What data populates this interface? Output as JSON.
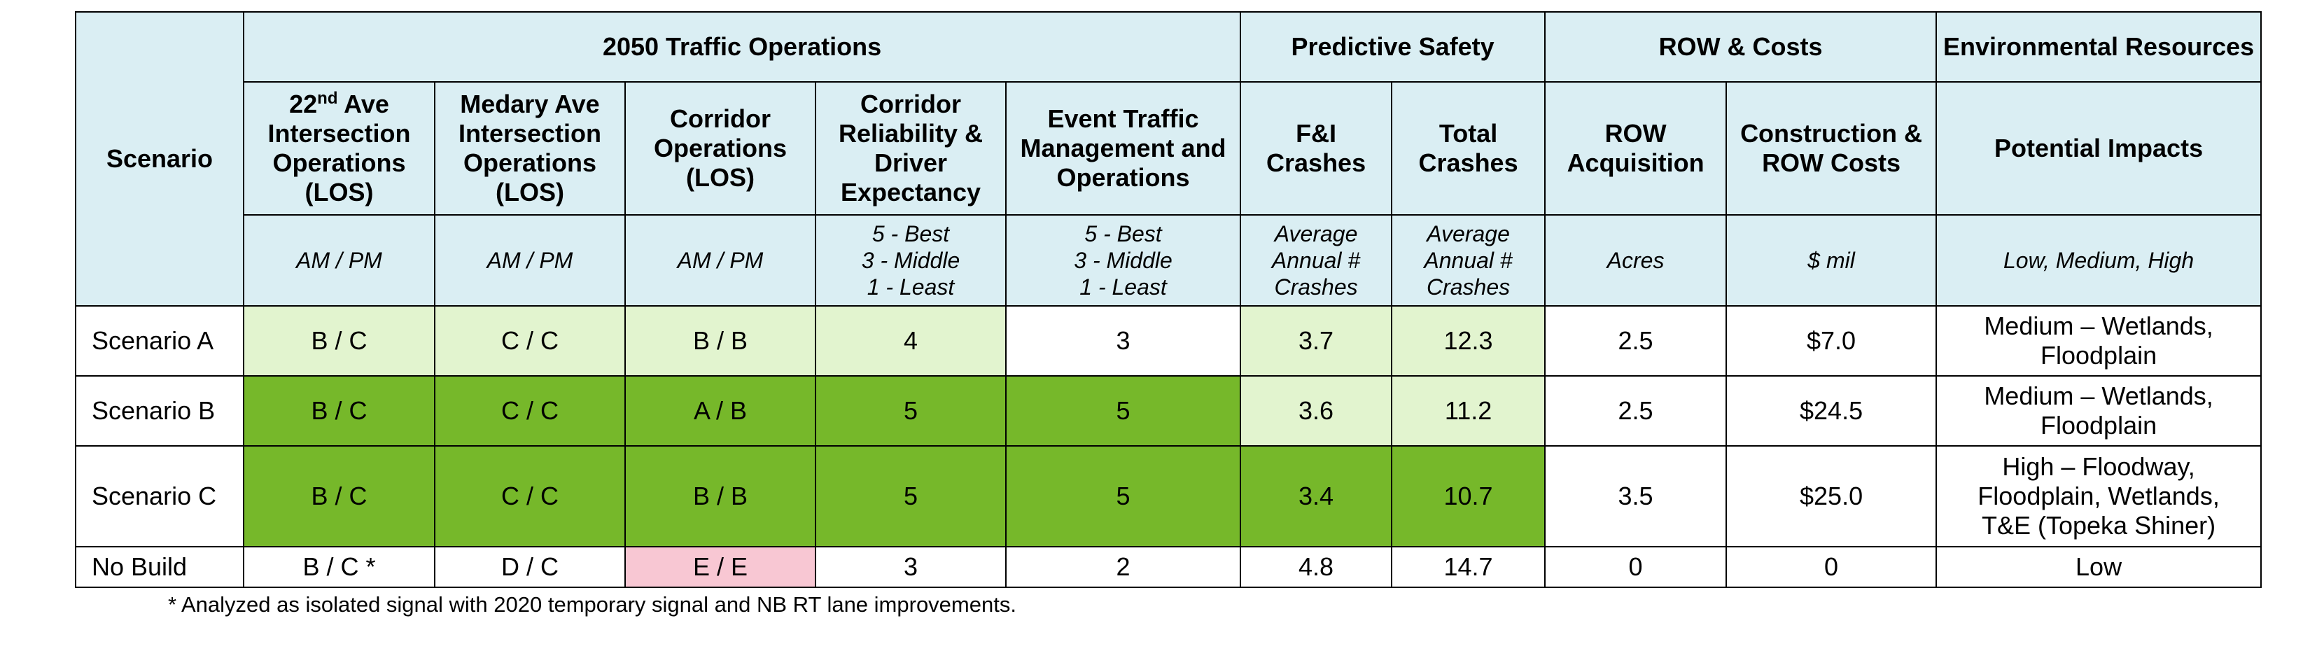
{
  "groups": {
    "scenario": "Scenario",
    "traffic": "2050 Traffic Operations",
    "safety": "Predictive Safety",
    "row": "ROW & Costs",
    "env": "Environmental Resources"
  },
  "columns": {
    "c1_pre": "22",
    "c1_sup": "nd",
    "c1_post": " Ave Intersection Operations (LOS)",
    "c2": "Medary Ave Intersection Operations (LOS)",
    "c3": "Corridor Operations (LOS)",
    "c4": "Corridor Reliability & Driver Expectancy",
    "c5": "Event Traffic Management and Operations",
    "c6": "F&I Crashes",
    "c7": "Total Crashes",
    "c8": "ROW Acquisition",
    "c9": "Construction & ROW Costs",
    "c10": "Potential Impacts"
  },
  "units": {
    "c1": "AM / PM",
    "c2": "AM / PM",
    "c3": "AM / PM",
    "c4": [
      "5 - Best",
      "3 - Middle",
      "1 - Least"
    ],
    "c5": [
      "5 - Best",
      "3 - Middle",
      "1 - Least"
    ],
    "c6": [
      "Average",
      "Annual #",
      "Crashes"
    ],
    "c7": [
      "Average",
      "Annual #",
      "Crashes"
    ],
    "c8": "Acres",
    "c9": "$ mil",
    "c10": "Low, Medium, High"
  },
  "rows": [
    {
      "label": "Scenario A",
      "values": [
        "B / C",
        "C / C",
        "B / B",
        "4",
        "3",
        "3.7",
        "12.3",
        "2.5",
        "$7.0"
      ],
      "impacts": [
        "Medium – Wetlands,",
        "Floodplain"
      ]
    },
    {
      "label": "Scenario B",
      "values": [
        "B / C",
        "C / C",
        "A / B",
        "5",
        "5",
        "3.6",
        "11.2",
        "2.5",
        "$24.5"
      ],
      "impacts": [
        "Medium – Wetlands,",
        "Floodplain"
      ]
    },
    {
      "label": "Scenario C",
      "values": [
        "B / C",
        "C / C",
        "B / B",
        "5",
        "5",
        "3.4",
        "10.7",
        "3.5",
        "$25.0"
      ],
      "impacts": [
        "High – Floodway,",
        "Floodplain, Wetlands,",
        "T&E (Topeka Shiner)"
      ]
    },
    {
      "label": "No Build",
      "values": [
        "B / C *",
        "D / C",
        "E / E",
        "3",
        "2",
        "4.8",
        "14.7",
        "0",
        "0"
      ],
      "impacts": [
        "Low"
      ]
    }
  ],
  "colors": {
    "header": "#daeef3",
    "light_green": "#e2f4cf",
    "dark_green": "#76b82a",
    "pink": "#f8c7d3"
  },
  "footnote": "* Analyzed as isolated signal with 2020 temporary signal and NB RT lane improvements."
}
